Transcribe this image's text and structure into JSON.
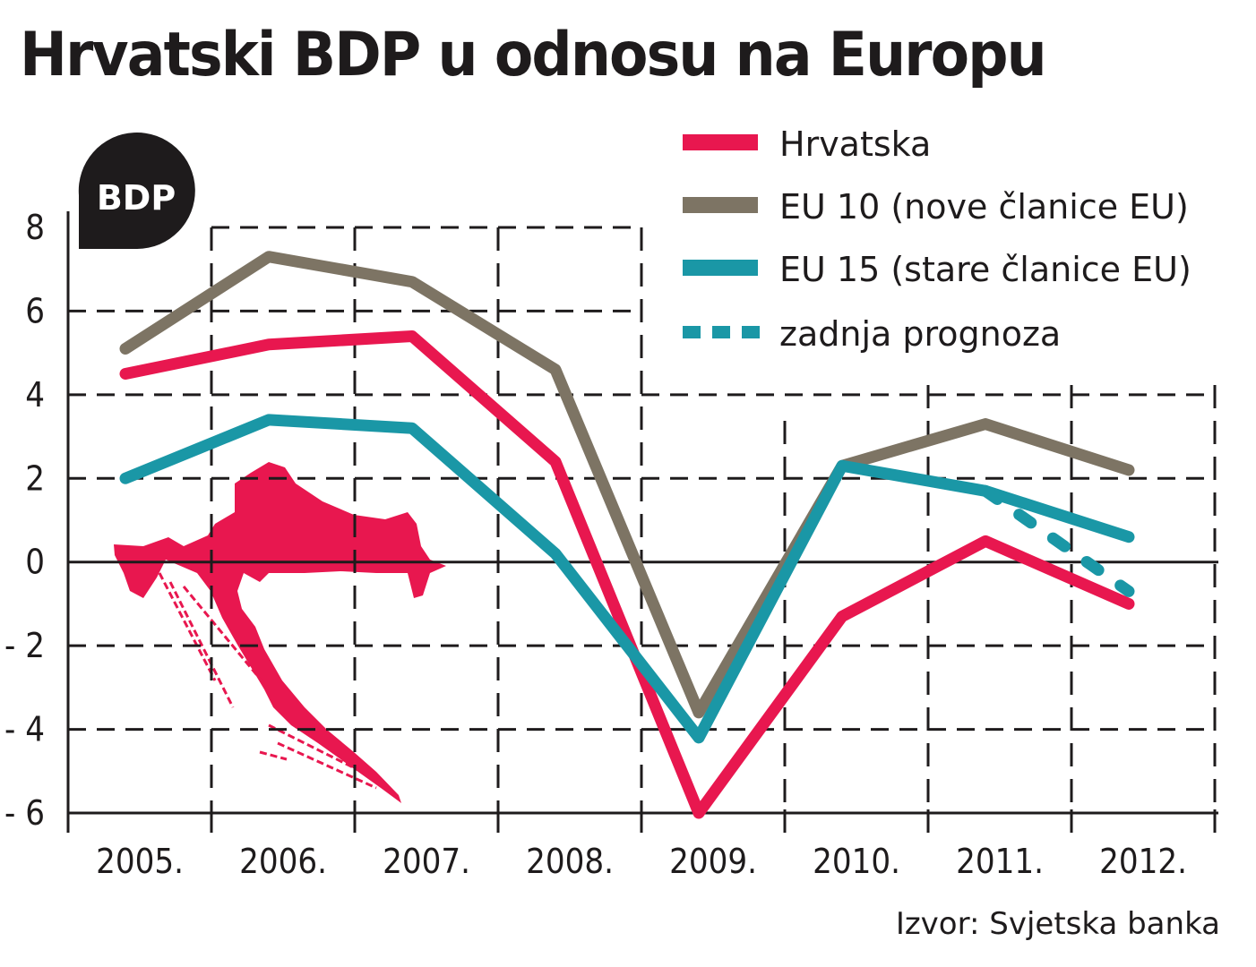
{
  "title": "Hrvatski BDP u odnosu na Europu",
  "badge": "BDP",
  "source": "Izvor: Svjetska banka",
  "colors": {
    "hrvatska": "#e8174f",
    "eu10": "#7d7464",
    "eu15": "#1a97a6",
    "grid": "#1e1b1c",
    "badge_bg": "#1e1b1c",
    "map": "#e8174f"
  },
  "chart_data": {
    "type": "line",
    "title": "Hrvatski BDP u odnosu na Europu",
    "xlabel": "",
    "ylabel": "",
    "categories": [
      "2005.",
      "2006.",
      "2007.",
      "2008.",
      "2009.",
      "2010.",
      "2011.",
      "2012."
    ],
    "yticks": [
      "8",
      "6",
      "4",
      "2",
      "0",
      "- 2",
      "- 4",
      "- 6"
    ],
    "ytick_values": [
      8,
      6,
      4,
      2,
      0,
      -2,
      -4,
      -6
    ],
    "ylim": [
      -6,
      8
    ],
    "grid": true,
    "legend_position": "top-right",
    "series": [
      {
        "key": "hrvatska",
        "name": "Hrvatska",
        "style": "solid",
        "values": [
          4.5,
          5.2,
          5.4,
          2.4,
          -6.0,
          -1.3,
          0.5,
          -1.0
        ]
      },
      {
        "key": "eu10",
        "name": "EU 10 (nove članice EU)",
        "style": "solid",
        "values": [
          5.1,
          7.3,
          6.7,
          4.6,
          -3.6,
          2.3,
          3.3,
          2.2
        ]
      },
      {
        "key": "eu15",
        "name": "EU 15 (stare članice EU)",
        "style": "solid",
        "values": [
          2.0,
          3.4,
          3.2,
          0.2,
          -4.2,
          2.3,
          1.7,
          0.6
        ]
      },
      {
        "key": "prognoza",
        "name": "zadnja prognoza",
        "style": "dashed",
        "values": [
          null,
          null,
          null,
          null,
          null,
          null,
          1.7,
          -0.7
        ]
      }
    ]
  }
}
